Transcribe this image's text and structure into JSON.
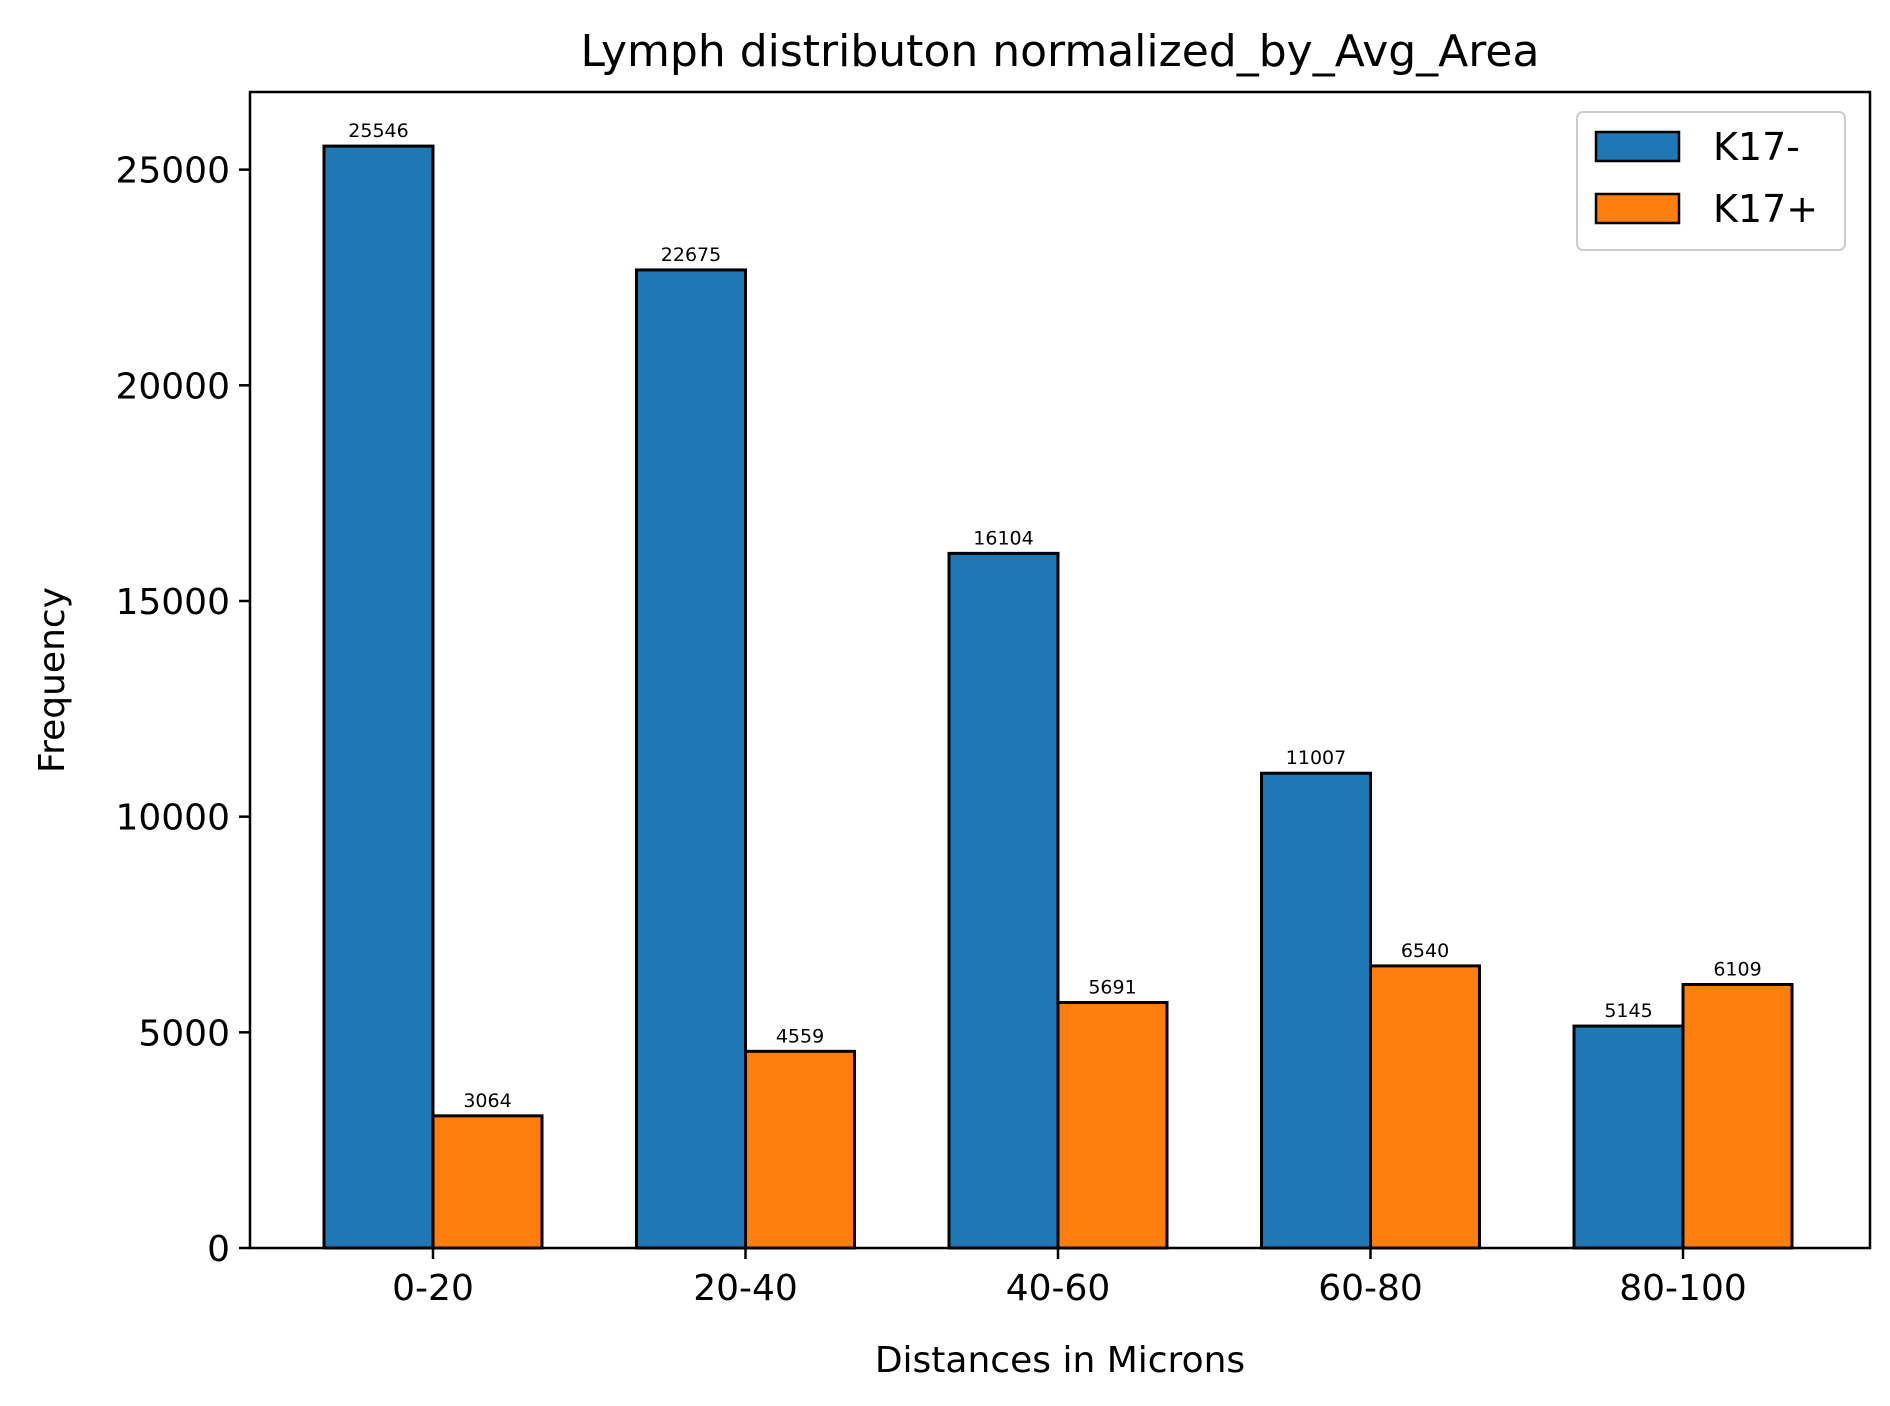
{
  "chart_data": {
    "type": "bar",
    "title": "Lymph distributon normalized_by_Avg_Area",
    "xlabel": "Distances in Microns",
    "ylabel": "Frequency",
    "categories": [
      "0-20",
      "20-40",
      "40-60",
      "60-80",
      "80-100"
    ],
    "series": [
      {
        "name": "K17-",
        "values": [
          25546,
          22675,
          16104,
          11007,
          5145
        ],
        "color": "#1f77b4"
      },
      {
        "name": "K17+",
        "values": [
          3064,
          4559,
          5691,
          6540,
          6109
        ],
        "color": "#ff7f0e"
      }
    ],
    "ylim": [
      0,
      26800
    ],
    "yticks": [
      0,
      5000,
      10000,
      15000,
      20000,
      25000
    ],
    "grid": false,
    "legend_position": "top-right"
  }
}
